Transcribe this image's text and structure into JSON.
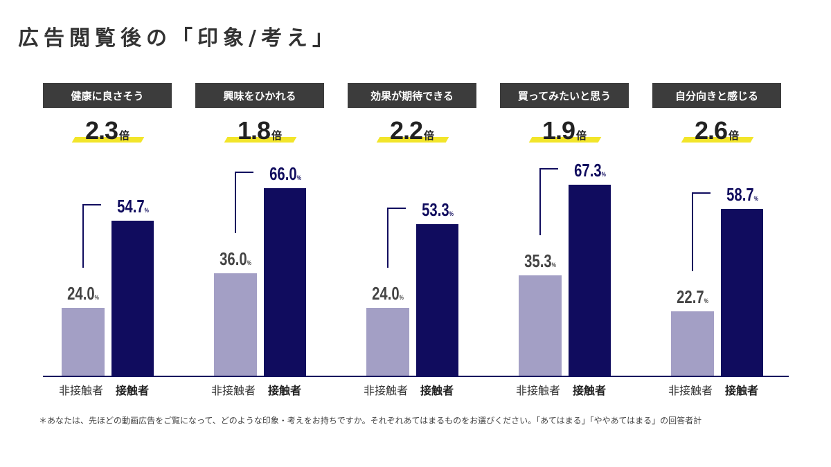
{
  "title": "広告閲覧後の「印象/考え」",
  "colors": {
    "non_contact": "#a39fc5",
    "contact": "#100c5e",
    "category_box": "#3c3c3c",
    "highlight": "#f2e52a"
  },
  "footnote": "＊あなたは、先ほどの動画広告をご覧になって、どのような印象・考えをお持ちですか。それぞれあてはまるものをお選びください。「あてはまる」「ややあてはまる」の回答者計",
  "ratio_unit": "倍",
  "percent_unit": "%",
  "chart_data": {
    "type": "bar",
    "title": "広告閲覧後の「印象/考え」",
    "xlabel": "",
    "ylabel": "",
    "ylim": [
      0,
      100
    ],
    "grid": false,
    "categories": [
      "健康に良さそう",
      "興味をひかれる",
      "効果が期待できる",
      "買ってみたいと思う",
      "自分向きと感じる"
    ],
    "series": [
      {
        "name": "非接触者",
        "values": [
          24.0,
          36.0,
          24.0,
          35.3,
          22.7
        ],
        "labels": [
          "24.0",
          "36.0",
          "24.0",
          "35.3",
          "22.7"
        ]
      },
      {
        "name": "接触者",
        "values": [
          54.7,
          66.0,
          53.3,
          67.3,
          58.7
        ],
        "labels": [
          "54.7",
          "66.0",
          "53.3",
          "67.3",
          "58.7"
        ]
      }
    ],
    "ratios": [
      "2.3",
      "1.8",
      "2.2",
      "1.9",
      "2.6"
    ],
    "annotations": [
      "倍"
    ]
  }
}
